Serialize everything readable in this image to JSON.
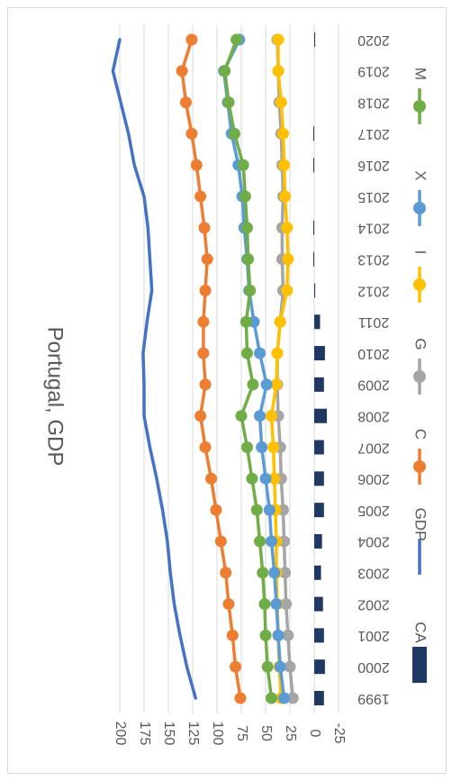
{
  "chart_data": {
    "type": "line",
    "title": "Portugal, GDP",
    "orientation": "rotated-90-clockwise",
    "categories": [
      "1999",
      "2000",
      "2001",
      "2002",
      "2003",
      "2004",
      "2005",
      "2006",
      "2007",
      "2008",
      "2009",
      "2010",
      "2011",
      "2012",
      "2013",
      "2014",
      "2015",
      "2016",
      "2017",
      "2018",
      "2019",
      "2020"
    ],
    "ylim": [
      -35,
      210
    ],
    "yticks": [
      "200",
      "175",
      "150",
      "125",
      "100",
      "75",
      "50",
      "25",
      "0",
      "-25"
    ],
    "grid": true,
    "legend_position": "right",
    "series": [
      {
        "name": "CA",
        "kind": "bar",
        "color": "#203864",
        "values": [
          -10,
          -11,
          -10,
          -9,
          -7,
          -8,
          -10,
          -10,
          -10,
          -13,
          -10,
          -11,
          -6,
          -1,
          1,
          1,
          0,
          1,
          1,
          0,
          0,
          -1
        ]
      },
      {
        "name": "GDP",
        "kind": "line",
        "color": "#4472c4",
        "values": [
          122,
          131,
          138,
          144,
          148,
          151,
          156,
          162,
          169,
          175,
          175,
          176,
          172,
          167,
          169,
          171,
          175,
          185,
          191,
          199,
          207,
          200
        ]
      },
      {
        "name": "C",
        "kind": "line",
        "color": "#ed7d31",
        "values": [
          76,
          81,
          84,
          88,
          91,
          96,
          101,
          106,
          112,
          117,
          112,
          114,
          114,
          112,
          110,
          113,
          117,
          121,
          126,
          132,
          136,
          126
        ]
      },
      {
        "name": "G",
        "kind": "line",
        "color": "#a5a5a5",
        "values": [
          22,
          25,
          27,
          29,
          30,
          31,
          32,
          34,
          35,
          37,
          38,
          38,
          35,
          32,
          33,
          33,
          32,
          33,
          34,
          36,
          37,
          38
        ]
      },
      {
        "name": "I",
        "kind": "line",
        "color": "#ffc000",
        "values": [
          34,
          36,
          37,
          38,
          39,
          39,
          40,
          41,
          42,
          44,
          39,
          38,
          35,
          28,
          27,
          28,
          30,
          31,
          32,
          34,
          37,
          37
        ]
      },
      {
        "name": "X",
        "kind": "line",
        "color": "#5b9bd5",
        "values": [
          31,
          35,
          37,
          39,
          41,
          44,
          46,
          50,
          54,
          56,
          49,
          56,
          62,
          67,
          69,
          72,
          74,
          78,
          85,
          89,
          93,
          77
        ]
      },
      {
        "name": "M",
        "kind": "line",
        "color": "#70ad47",
        "values": [
          44,
          48,
          50,
          51,
          53,
          56,
          59,
          64,
          69,
          75,
          63,
          69,
          70,
          66,
          68,
          69,
          71,
          73,
          82,
          88,
          92,
          80
        ]
      }
    ]
  }
}
